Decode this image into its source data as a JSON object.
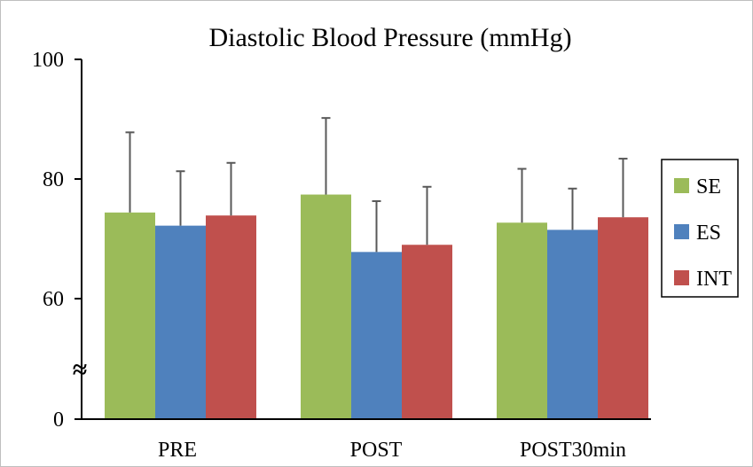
{
  "chart_data": {
    "type": "bar",
    "title": "Diastolic Blood Pressure (mmHg)",
    "xlabel": "",
    "ylabel": "",
    "categories": [
      "PRE",
      "POST",
      "POST30min"
    ],
    "y_ticks": [
      0,
      60,
      80,
      100
    ],
    "y_break": true,
    "y_break_symbol": "≈",
    "ylim": [
      0,
      100
    ],
    "legend_position": "right",
    "series": [
      {
        "name": "SE",
        "color": "#9bbb59",
        "values": [
          74.4,
          77.4,
          72.7
        ],
        "errors": [
          13.4,
          12.8,
          9.0
        ]
      },
      {
        "name": "ES",
        "color": "#4f81bd",
        "values": [
          72.2,
          67.8,
          71.5
        ],
        "errors": [
          9.1,
          8.5,
          6.9
        ]
      },
      {
        "name": "INT",
        "color": "#c0504d",
        "values": [
          73.9,
          69.0,
          73.6
        ],
        "errors": [
          8.8,
          9.7,
          9.8
        ]
      }
    ]
  }
}
